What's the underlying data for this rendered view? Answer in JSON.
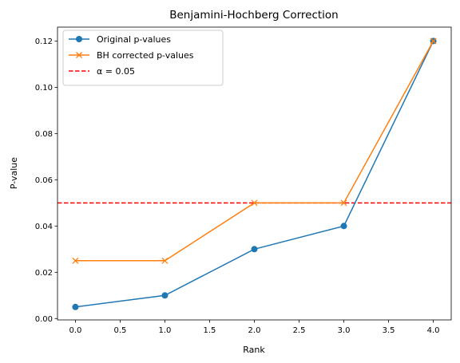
{
  "chart_data": {
    "type": "line",
    "title": "Benjamini-Hochberg Correction",
    "xlabel": "Rank",
    "ylabel": "P-value",
    "x": [
      0,
      1,
      2,
      3,
      4
    ],
    "xlim": [
      -0.2,
      4.2
    ],
    "ylim": [
      -0.0006,
      0.126
    ],
    "xticks": [
      0.0,
      0.5,
      1.0,
      1.5,
      2.0,
      2.5,
      3.0,
      3.5,
      4.0
    ],
    "xtick_labels": [
      "0.0",
      "0.5",
      "1.0",
      "1.5",
      "2.0",
      "2.5",
      "3.0",
      "3.5",
      "4.0"
    ],
    "yticks": [
      0.0,
      0.02,
      0.04,
      0.06,
      0.08,
      0.1,
      0.12
    ],
    "ytick_labels": [
      "0.00",
      "0.02",
      "0.04",
      "0.06",
      "0.08",
      "0.10",
      "0.12"
    ],
    "grid": false,
    "legend_position": "top-left",
    "series": [
      {
        "name": "Original p-values",
        "values": [
          0.005,
          0.01,
          0.03,
          0.04,
          0.12
        ],
        "color": "#1f77b4",
        "marker": "circle"
      },
      {
        "name": "BH corrected p-values",
        "values": [
          0.025,
          0.025,
          0.05,
          0.05,
          0.12
        ],
        "color": "#ff7f0e",
        "marker": "x"
      }
    ],
    "reference_lines": [
      {
        "name": "α = 0.05",
        "y": 0.05,
        "color": "#ff0000",
        "style": "dashed"
      }
    ]
  }
}
